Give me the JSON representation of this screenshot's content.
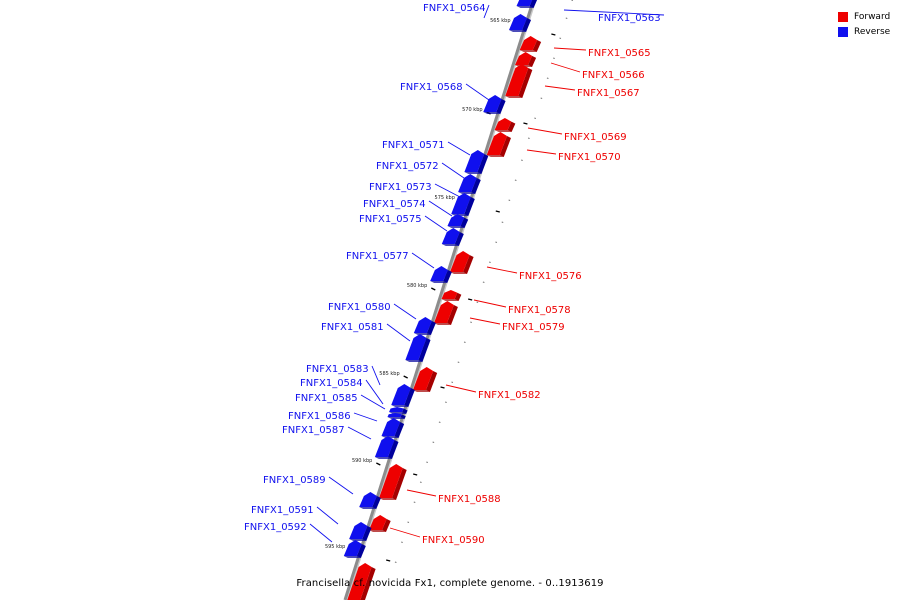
{
  "caption": "Francisella cf. novicida Fx1, complete genome. - 0..1913619",
  "legend": [
    {
      "label": "Forward",
      "color": "#ee0000"
    },
    {
      "label": "Reverse",
      "color": "#1010ee"
    }
  ],
  "colors": {
    "forward": "#ee0000",
    "forward_dark": "#a40000",
    "forward_light": "#ff6a6a",
    "reverse": "#1010ee",
    "reverse_dark": "#00009c",
    "reverse_light": "#6a6aff",
    "backbone": "#8c8c8c"
  },
  "kbp_ticks": [
    "565 kbp",
    "570 kbp",
    "575 kbp",
    "580 kbp",
    "585 kbp",
    "590 kbp",
    "595 kbp"
  ],
  "genes": [
    {
      "id": "FNFX1_0563",
      "strand": "reverse"
    },
    {
      "id": "FNFX1_0564",
      "strand": "reverse"
    },
    {
      "id": "FNFX1_0565",
      "strand": "forward"
    },
    {
      "id": "FNFX1_0566",
      "strand": "forward"
    },
    {
      "id": "FNFX1_0567",
      "strand": "forward"
    },
    {
      "id": "FNFX1_0568",
      "strand": "reverse"
    },
    {
      "id": "FNFX1_0569",
      "strand": "forward"
    },
    {
      "id": "FNFX1_0570",
      "strand": "forward"
    },
    {
      "id": "FNFX1_0571",
      "strand": "reverse"
    },
    {
      "id": "FNFX1_0572",
      "strand": "reverse"
    },
    {
      "id": "FNFX1_0573",
      "strand": "reverse"
    },
    {
      "id": "FNFX1_0574",
      "strand": "reverse"
    },
    {
      "id": "FNFX1_0575",
      "strand": "reverse"
    },
    {
      "id": "FNFX1_0576",
      "strand": "forward"
    },
    {
      "id": "FNFX1_0577",
      "strand": "reverse"
    },
    {
      "id": "FNFX1_0578",
      "strand": "forward"
    },
    {
      "id": "FNFX1_0579",
      "strand": "forward"
    },
    {
      "id": "FNFX1_0580",
      "strand": "reverse"
    },
    {
      "id": "FNFX1_0581",
      "strand": "reverse"
    },
    {
      "id": "FNFX1_0582",
      "strand": "forward"
    },
    {
      "id": "FNFX1_0583",
      "strand": "reverse"
    },
    {
      "id": "FNFX1_0584",
      "strand": "reverse"
    },
    {
      "id": "FNFX1_0585",
      "strand": "reverse"
    },
    {
      "id": "FNFX1_0586",
      "strand": "reverse"
    },
    {
      "id": "FNFX1_0587",
      "strand": "reverse"
    },
    {
      "id": "FNFX1_0588",
      "strand": "forward"
    },
    {
      "id": "FNFX1_0589",
      "strand": "reverse"
    },
    {
      "id": "FNFX1_0590",
      "strand": "forward"
    },
    {
      "id": "FNFX1_0591",
      "strand": "reverse"
    },
    {
      "id": "FNFX1_0592",
      "strand": "reverse"
    }
  ]
}
